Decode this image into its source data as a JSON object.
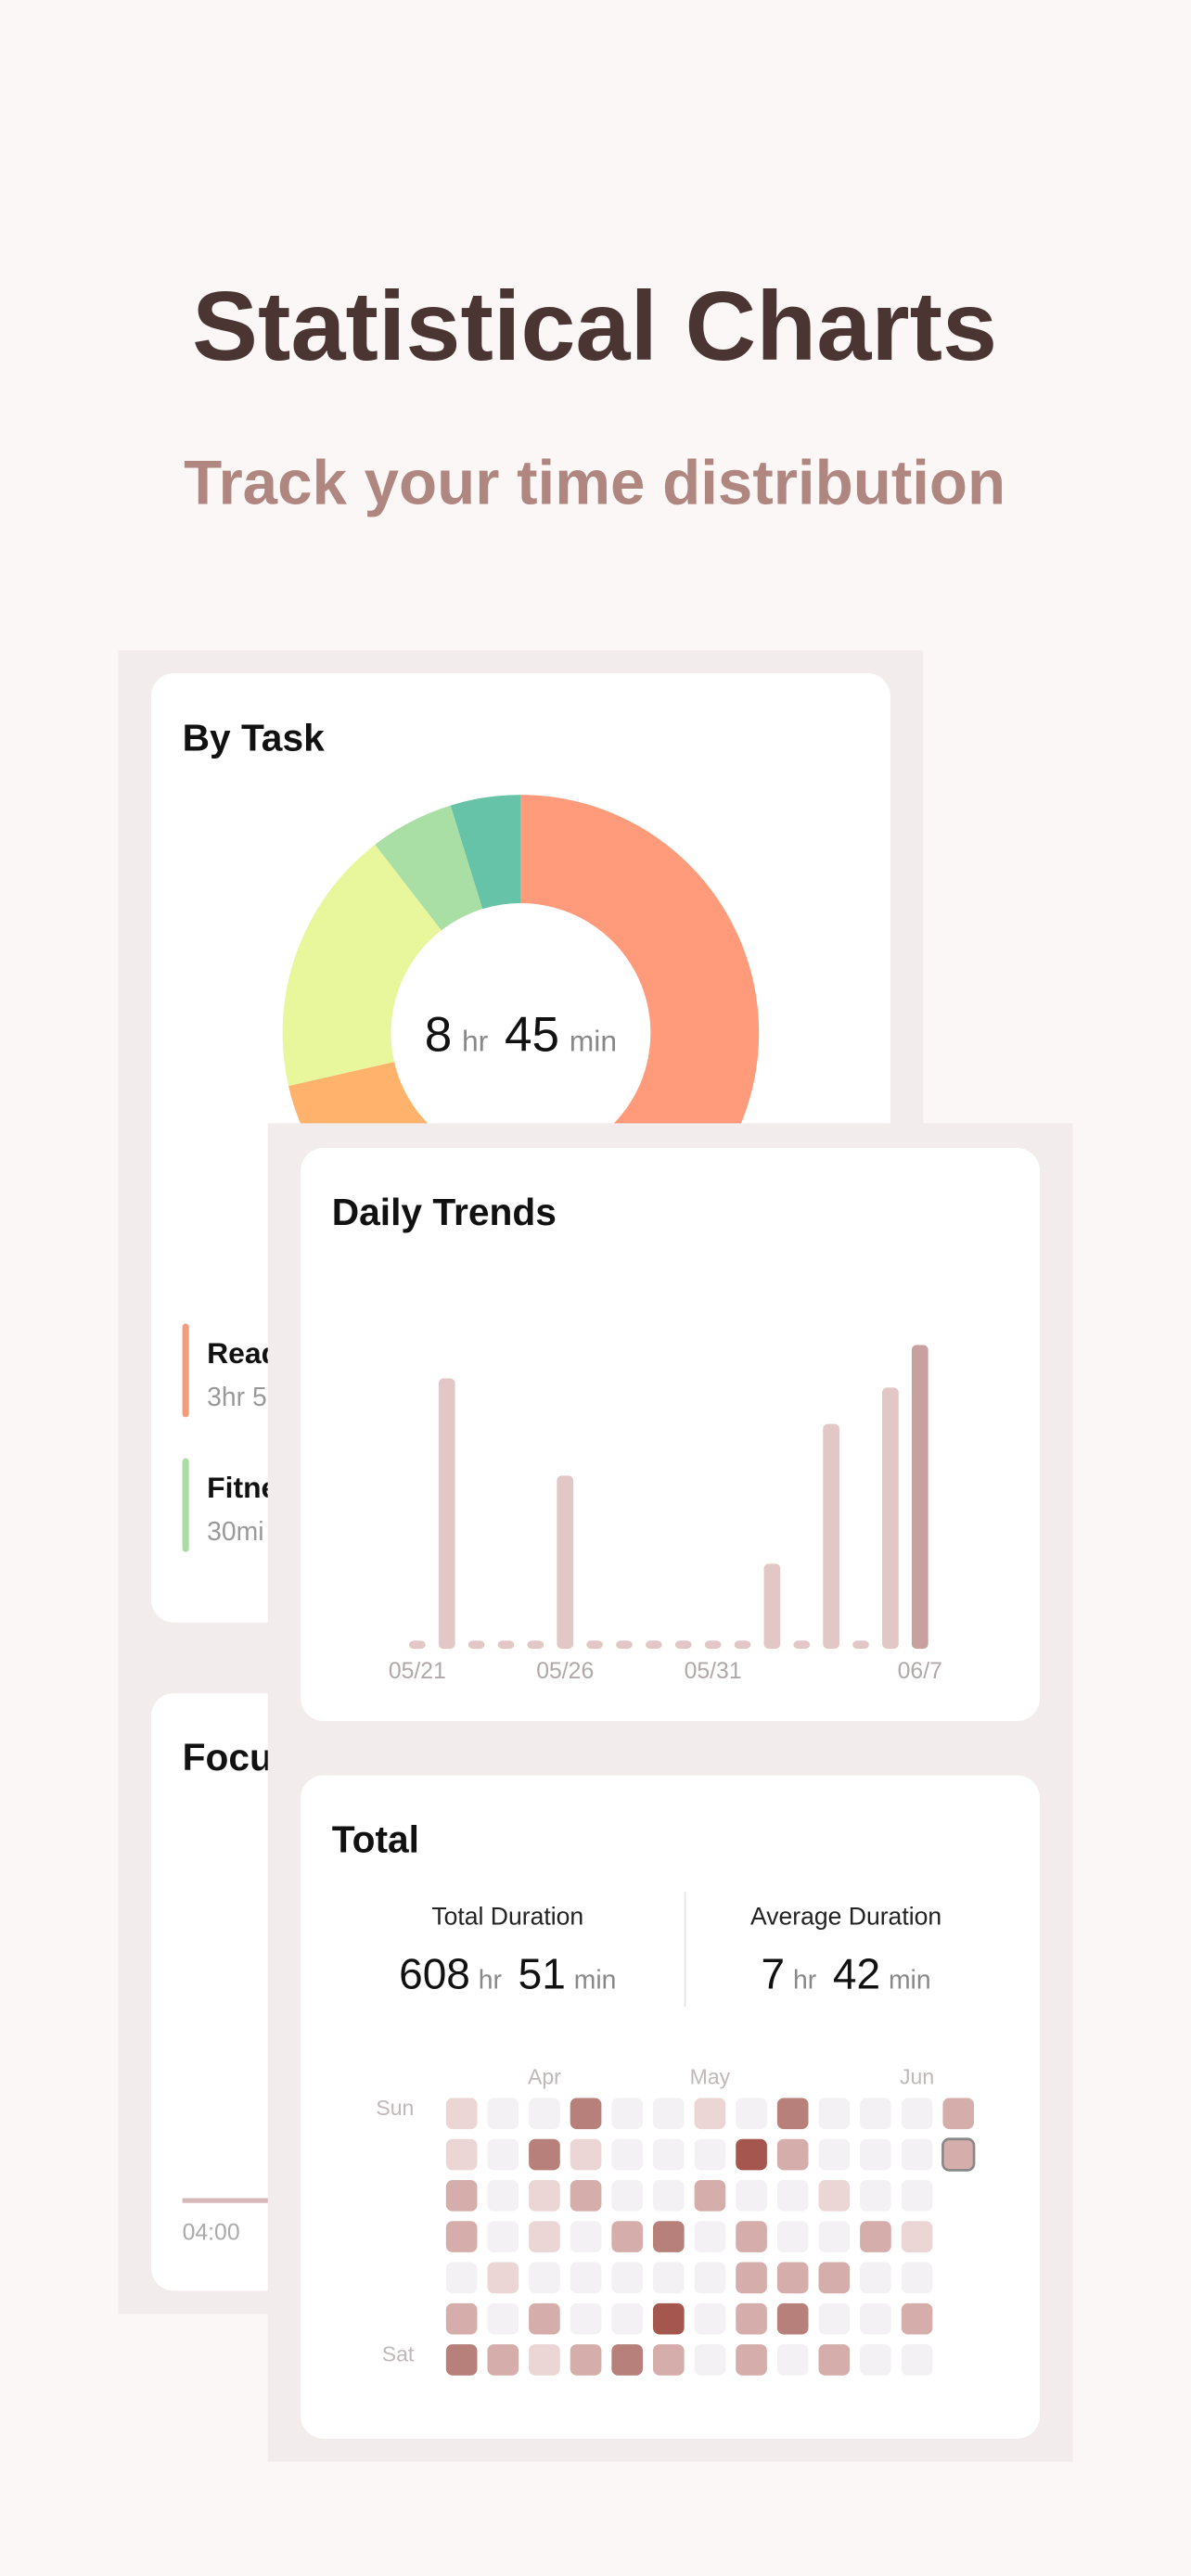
{
  "header": {
    "title": "Statistical Charts",
    "subtitle": "Track your time distribution"
  },
  "chart_data": [
    {
      "type": "pie",
      "title": "By Task",
      "values": [
        235,
        60,
        80,
        95,
        30,
        25
      ],
      "colors": [
        "#ff9b7a",
        "#f7c873",
        "#ffb26b",
        "#e8f69c",
        "#a9dfa4",
        "#67c3a7"
      ],
      "center": {
        "hours": 8,
        "hours_unit": "hr",
        "minutes": 45,
        "minutes_unit": "min"
      },
      "legend": [
        {
          "label": "Read",
          "detail": "3hr 5",
          "color": "#f59a7a"
        },
        {
          "label": "Fitne",
          "detail": "30mi",
          "color": "#a9dca0"
        }
      ]
    },
    {
      "type": "bar",
      "title": "Daily Trends",
      "categories": [
        "05/21",
        null,
        null,
        null,
        null,
        "05/26",
        null,
        null,
        null,
        null,
        "05/31",
        null,
        null,
        null,
        null,
        null,
        null,
        "06/7"
      ],
      "values": [
        0,
        8.9,
        0,
        0,
        0,
        5.7,
        0,
        0,
        0,
        0,
        0,
        0,
        2.8,
        0,
        7.4,
        0,
        8.6,
        10
      ],
      "ylim": [
        0,
        10
      ],
      "color": "#e3c6c6",
      "highlight_color": "#c8a0a0",
      "highlight_index": 17
    },
    {
      "type": "heatmap",
      "title": "Total",
      "stats": [
        {
          "label": "Total Duration",
          "hours": 608,
          "hours_unit": "hr",
          "minutes": 51,
          "minutes_unit": "min"
        },
        {
          "label": "Average Duration",
          "hours": 7,
          "hours_unit": "hr",
          "minutes": 42,
          "minutes_unit": "min"
        }
      ],
      "column_labels": [
        null,
        null,
        "Apr",
        null,
        null,
        null,
        "May",
        null,
        null,
        null,
        null,
        "Jun",
        null
      ],
      "row_labels": [
        "Sun",
        null,
        null,
        null,
        null,
        null,
        "Sat"
      ],
      "rows": [
        [
          1,
          0,
          0,
          3,
          0,
          0,
          1,
          0,
          3,
          0,
          0,
          0,
          2
        ],
        [
          1,
          0,
          3,
          1,
          0,
          0,
          0,
          4,
          2,
          0,
          0,
          0,
          2
        ],
        [
          2,
          0,
          1,
          2,
          0,
          0,
          2,
          0,
          0,
          1,
          0,
          0,
          null
        ],
        [
          2,
          0,
          1,
          0,
          2,
          3,
          0,
          2,
          0,
          0,
          2,
          1,
          null
        ],
        [
          0,
          1,
          0,
          0,
          0,
          0,
          0,
          2,
          2,
          2,
          0,
          0,
          null
        ],
        [
          2,
          0,
          2,
          0,
          0,
          4,
          0,
          2,
          3,
          0,
          0,
          2,
          null
        ],
        [
          3,
          2,
          1,
          2,
          3,
          2,
          0,
          2,
          0,
          2,
          0,
          0,
          null
        ]
      ],
      "level_colors": [
        "#f3f1f3",
        "#ecd5d5",
        "#d5aeab",
        "#b7807b",
        "#a5574f"
      ],
      "today": [
        1,
        12
      ]
    }
  ],
  "focus": {
    "title": "Focu",
    "xtick": "04:00"
  }
}
